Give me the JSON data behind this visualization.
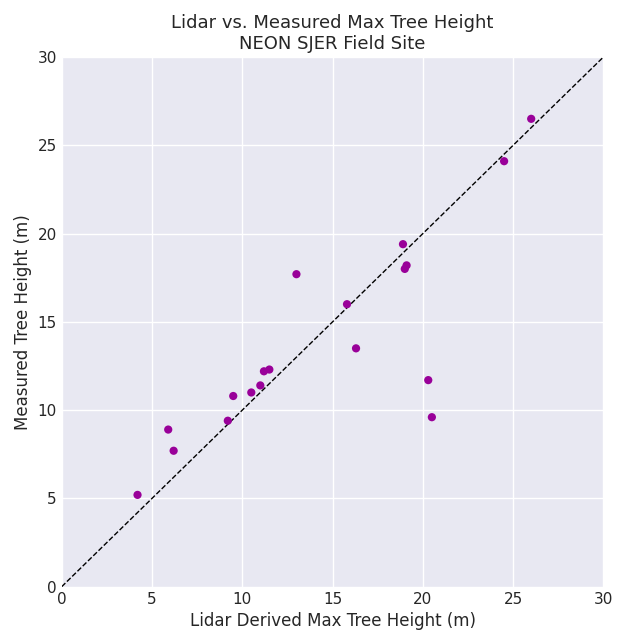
{
  "x": [
    4.2,
    5.9,
    6.2,
    9.2,
    9.5,
    10.5,
    11.0,
    11.2,
    11.5,
    13.0,
    15.8,
    16.3,
    18.9,
    19.0,
    19.1,
    20.3,
    20.5,
    24.5,
    26.0
  ],
  "y": [
    5.2,
    8.9,
    7.7,
    9.4,
    10.8,
    11.0,
    11.4,
    12.2,
    12.3,
    17.7,
    16.0,
    13.5,
    19.4,
    18.0,
    18.2,
    11.7,
    9.6,
    24.1,
    26.5
  ],
  "title_line1": "Lidar vs. Measured Max Tree Height",
  "title_line2": "NEON SJER Field Site",
  "xlabel": "Lidar Derived Max Tree Height (m)",
  "ylabel": "Measured Tree Height (m)",
  "xlim": [
    0,
    30
  ],
  "ylim": [
    0,
    30
  ],
  "xticks": [
    0,
    5,
    10,
    15,
    20,
    25,
    30
  ],
  "yticks": [
    0,
    5,
    10,
    15,
    20,
    25,
    30
  ],
  "scatter_color": "#990099",
  "scatter_size": 35,
  "line_color": "black",
  "line_style": "--",
  "axes_bg_color": "#e8e8f2",
  "fig_bg_color": "#ffffff",
  "grid_color": "#ffffff",
  "title_fontsize": 13,
  "label_fontsize": 12,
  "tick_fontsize": 11
}
